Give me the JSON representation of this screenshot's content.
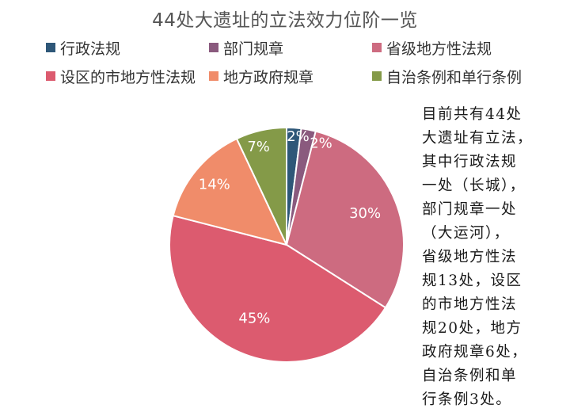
{
  "chart_data": {
    "type": "pie",
    "title": "44处大遗址的立法效力位阶一览",
    "categories": [
      "行政法规",
      "部门规章",
      "省级地方性法规",
      "设区的市地方性法规",
      "地方政府规章",
      "自治条例和单行条例"
    ],
    "values": [
      2,
      2,
      30,
      45,
      14,
      7
    ],
    "data_labels": [
      "2%",
      "2%",
      "30%",
      "45%",
      "14%",
      "7%"
    ],
    "colors": [
      "#2e5778",
      "#8a5a7e",
      "#cd6b80",
      "#dc5b6f",
      "#f08c6a",
      "#849a48"
    ],
    "legend_position": "top"
  },
  "note": {
    "lines": [
      "目前共有44处",
      "大遗址有立法，",
      "其中行政法规",
      "一处（长城），",
      "部门规章一处",
      "（大运河），",
      "省级地方性法",
      "规13处，设区",
      "的市地方性法",
      "规20处，地方",
      "政府规章6处，",
      "自治条例和单",
      "行条例3处。"
    ]
  }
}
